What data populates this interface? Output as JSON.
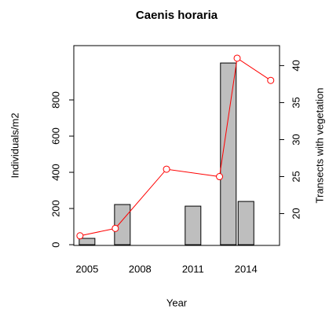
{
  "chart_data": {
    "type": "bar",
    "title": "Caenis horaria",
    "x_label": "Year",
    "y_label": "Individuals/m2",
    "y2_label": "Transects with vegetation",
    "xlim": [
      2004.25,
      2015.9
    ],
    "xticks": [
      2005,
      2008,
      2011,
      2014
    ],
    "ylim": [
      -4,
      1100
    ],
    "yticks": [
      0,
      200,
      400,
      600,
      800
    ],
    "y2lim": [
      15.7,
      42.7
    ],
    "y2ticks": [
      20,
      25,
      30,
      35,
      40
    ],
    "series": [
      {
        "type": "bar",
        "color": "#bebebe",
        "x": [
          2005,
          2007,
          2011,
          2013,
          2014
        ],
        "values": [
          35,
          222,
          213,
          1004,
          239
        ]
      },
      {
        "type": "line",
        "axis": "y2",
        "color": "#ff0000",
        "x": [
          2004.6,
          2006.6,
          2009.5,
          2012.5,
          2013.5,
          2015.4
        ],
        "values": [
          17,
          18,
          26,
          25,
          41,
          38
        ]
      }
    ]
  }
}
